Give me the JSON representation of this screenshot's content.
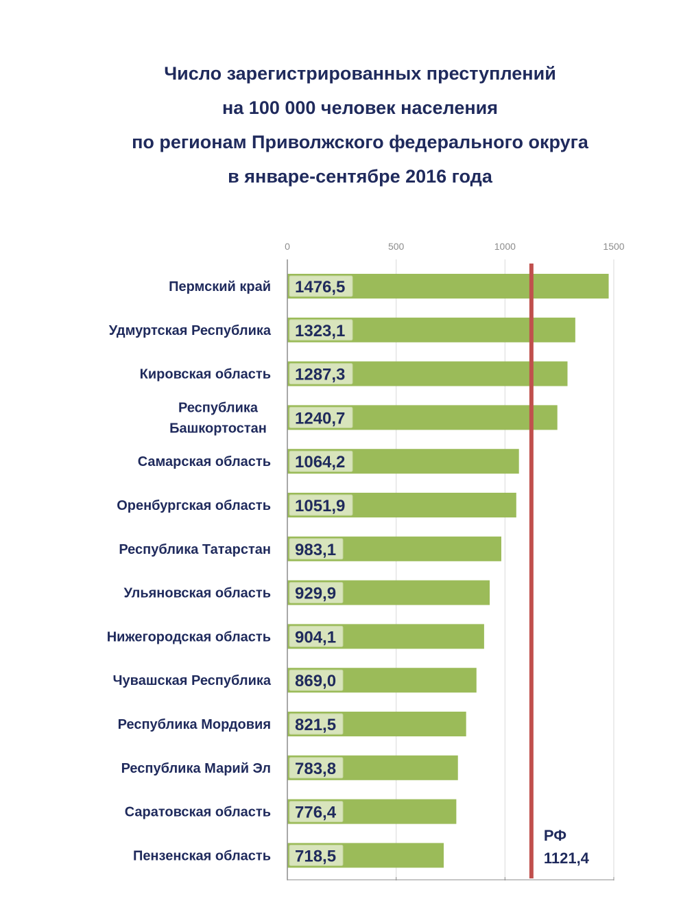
{
  "chart_data": {
    "type": "bar",
    "orientation": "horizontal",
    "title_lines": [
      "Число зарегистрированных преступлений",
      "на 100 000 человек населения",
      "по регионам Приволжского федерального округа",
      "в январе-сентябре 2016 года"
    ],
    "categories": [
      [
        "Пермский край"
      ],
      [
        "Удмуртская Республика"
      ],
      [
        "Кировская область"
      ],
      [
        "Республика",
        "Башкортостан"
      ],
      [
        "Самарская область"
      ],
      [
        "Оренбургская область"
      ],
      [
        "Республика Татарстан"
      ],
      [
        "Ульяновская область"
      ],
      [
        "Нижегородская область"
      ],
      [
        "Чувашская Республика"
      ],
      [
        "Республика Мордовия"
      ],
      [
        "Республика Марий Эл"
      ],
      [
        "Саратовская область"
      ],
      [
        "Пензенская область"
      ]
    ],
    "values": [
      1476.5,
      1323.1,
      1287.3,
      1240.7,
      1064.2,
      1051.9,
      983.1,
      929.9,
      904.1,
      869.0,
      821.5,
      783.8,
      776.4,
      718.5
    ],
    "value_labels": [
      "1476,5",
      "1323,1",
      "1287,3",
      "1240,7",
      "1064,2",
      "1051,9",
      "983,1",
      "929,9",
      "904,1",
      "869,0",
      "821,5",
      "783,8",
      "776,4",
      "718,5"
    ],
    "xlim": [
      0,
      1500
    ],
    "x_ticks": [
      0,
      500,
      1000,
      1500
    ],
    "x_axis_position": "top",
    "grid": true,
    "reference_line": {
      "value": 1121.4,
      "label_line1": "РФ",
      "label_line2": "1121,4",
      "color": "#c0504d"
    },
    "bar_color": "#9bbb59",
    "label_box_color": "#d8e4bc",
    "text_color": "#1f2a5c"
  }
}
